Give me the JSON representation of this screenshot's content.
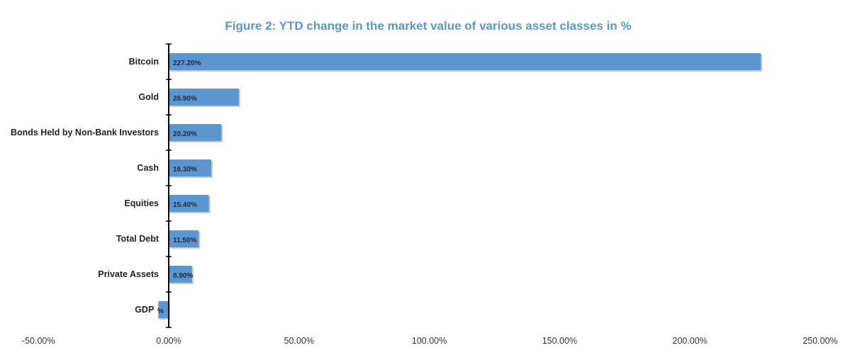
{
  "chart_data": {
    "type": "bar",
    "orientation": "horizontal",
    "title": "Figure 2: YTD change in the market value of various asset classes in %",
    "categories": [
      "Bitcoin",
      "Gold",
      "Bonds Held by Non-Bank Investors",
      "Cash",
      "Equities",
      "Total Debt",
      "Private Assets",
      "GDP"
    ],
    "values": [
      227.2,
      26.9,
      20.2,
      16.3,
      15.4,
      11.5,
      8.9,
      -4.0
    ],
    "data_labels": [
      "227.20%",
      "26.90%",
      "20.20%",
      "16.30%",
      "15.40%",
      "11.50%",
      "8.90%",
      "%"
    ],
    "xlim": [
      -50,
      250
    ],
    "x_ticks": [
      "-50.00%",
      "0.00%",
      "50.00%",
      "100.00%",
      "150.00%",
      "200.00%",
      "250.00%"
    ],
    "xlabel": "",
    "ylabel": "",
    "grid": false,
    "legend": "none",
    "bar_color": "#5b96d0",
    "title_color": "#5b96d0"
  }
}
